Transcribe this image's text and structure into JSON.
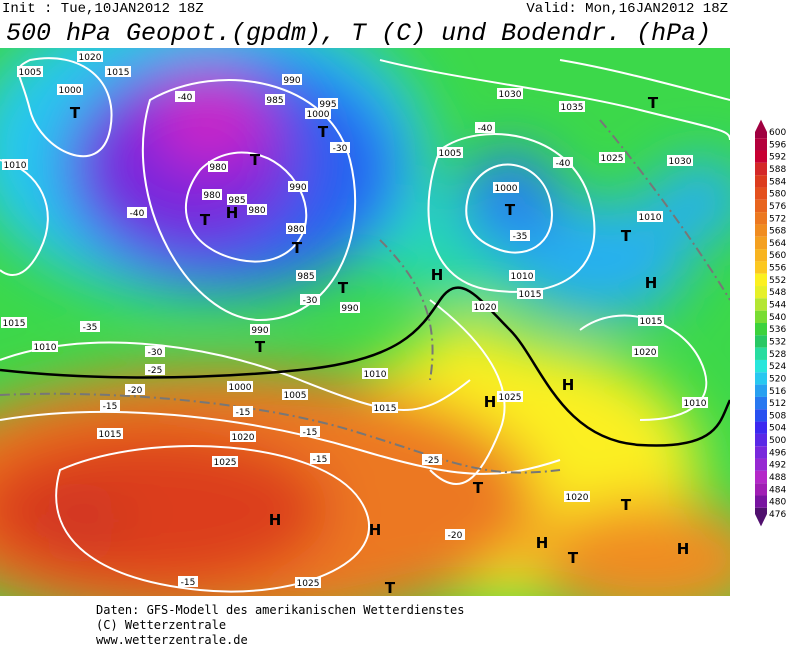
{
  "header": {
    "init": "Init : Tue,10JAN2012  18Z",
    "valid": "Valid: Mon,16JAN2012  18Z",
    "title": "500 hPa Geopot.(gpdm), T (C) und Bodendr. (hPa)"
  },
  "colorbar": {
    "labels": [
      600,
      596,
      592,
      588,
      584,
      580,
      576,
      572,
      568,
      564,
      560,
      556,
      552,
      548,
      544,
      540,
      536,
      532,
      528,
      524,
      520,
      516,
      512,
      508,
      504,
      500,
      496,
      492,
      488,
      484,
      480,
      476
    ],
    "colors": [
      "#a00040",
      "#b4003c",
      "#c80032",
      "#d42828",
      "#dc3c1e",
      "#e4501e",
      "#e8641e",
      "#ec7820",
      "#f08c20",
      "#f4a020",
      "#f8b420",
      "#fcc820",
      "#fcf020",
      "#e6f028",
      "#b4e632",
      "#78dc32",
      "#3cd23c",
      "#28c864",
      "#28dca0",
      "#28e6dc",
      "#28c8f0",
      "#28a0f0",
      "#2878f0",
      "#2850f0",
      "#3c28f0",
      "#5a28e6",
      "#7828dc",
      "#9628d2",
      "#b428c8",
      "#a01eb4",
      "#7814a0",
      "#50106e"
    ]
  },
  "map_labels": [
    "1020",
    "1015",
    "1005",
    "1000",
    "T",
    "990",
    "985",
    "995",
    "1000",
    "T",
    "-40",
    "-30",
    "980",
    "T",
    "980",
    "H",
    "985",
    "980",
    "990",
    "980",
    "T",
    "985",
    "-40",
    "T",
    "T",
    "990",
    "-30",
    "990",
    "T",
    "1015",
    "1010",
    "-35",
    "-30",
    "-25",
    "-20",
    "1000",
    "1005",
    "1010",
    "1015",
    "-15",
    "1015",
    "1020",
    "-15",
    "-15",
    "1025",
    "-15",
    "H",
    "H",
    "-15",
    "1025",
    "-20",
    "T",
    "1005",
    "1000",
    "T",
    "-35",
    "1010",
    "1015",
    "H",
    "1020",
    "1030",
    "1035",
    "-40",
    "T",
    "1025",
    "1030",
    "-40",
    "1010",
    "T",
    "H",
    "1015",
    "1020",
    "H",
    "1010",
    "H",
    "1025",
    "-25",
    "T",
    "1020",
    "T",
    "H",
    "T",
    "H",
    "1010"
  ],
  "footer": [
    "Daten: GFS-Modell des amerikanischen Wetterdienstes",
    "(C) Wetterzentrale",
    "www.wetterzentrale.de"
  ]
}
